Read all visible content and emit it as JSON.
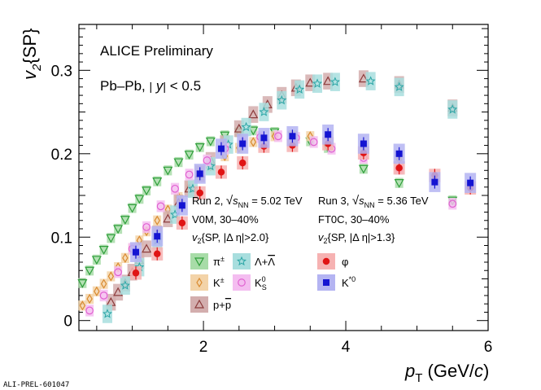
{
  "figure_id": "ALI-PREL-601047",
  "chart_data": {
    "type": "scatter",
    "xlabel": {
      "main": "p",
      "sub": "T",
      "unit": " (GeV/c)"
    },
    "ylabel": {
      "main": "v",
      "sub": "2",
      "suffix": "{SP}"
    },
    "xlim": [
      0.25,
      6.0
    ],
    "ylim": [
      -0.012,
      0.355
    ],
    "x_ticks": [
      2,
      4,
      6
    ],
    "y_ticks": [
      0,
      0.1,
      0.2,
      0.3
    ],
    "y_tick_labels": [
      "0",
      "0.1",
      "0.2",
      "0.3"
    ],
    "x_tick_labels": [
      "2",
      "4",
      "6"
    ],
    "annotations": {
      "collaboration": "ALICE Preliminary",
      "system": "Pb–Pb, |y| < 0.5",
      "run2": {
        "title": "Run 2, √s_NN = 5.02 TeV",
        "centrality": "V0M, 30–40%",
        "method": "v2{SP, |Δη|>2.0}"
      },
      "run3": {
        "title": "Run 3, √s_NN = 5.36 TeV",
        "centrality": "FT0C, 30–40%",
        "method": "v2{SP, |Δη|>1.3}"
      }
    },
    "legend_labels": {
      "pion": "π±",
      "lambda": "Λ+Λ̄",
      "kaon": "K±",
      "k0s": "K0S",
      "proton": "p+p̄",
      "phi": "φ",
      "kstar": "K*0"
    },
    "series": [
      {
        "key": "pion",
        "label": "π±",
        "marker": "triangle-down",
        "color": "#2e9e3a",
        "box": "#a8dca8",
        "points": [
          [
            0.3,
            0.045
          ],
          [
            0.4,
            0.06
          ],
          [
            0.5,
            0.073
          ],
          [
            0.6,
            0.085
          ],
          [
            0.7,
            0.099
          ],
          [
            0.8,
            0.11
          ],
          [
            0.9,
            0.121
          ],
          [
            1.0,
            0.135
          ],
          [
            1.1,
            0.146
          ],
          [
            1.2,
            0.156
          ],
          [
            1.35,
            0.167
          ],
          [
            1.5,
            0.18
          ],
          [
            1.65,
            0.19
          ],
          [
            1.8,
            0.199
          ],
          [
            1.95,
            0.208
          ],
          [
            2.1,
            0.215
          ],
          [
            2.3,
            0.222
          ],
          [
            2.5,
            0.226
          ],
          [
            2.7,
            0.228
          ],
          [
            3.0,
            0.226
          ],
          [
            3.25,
            0.222
          ],
          [
            3.5,
            0.215
          ],
          [
            3.75,
            0.207
          ],
          [
            4.25,
            0.182
          ],
          [
            4.75,
            0.165
          ],
          [
            5.5,
            0.144
          ]
        ]
      },
      {
        "key": "kaon",
        "label": "K±",
        "marker": "diamond",
        "color": "#d98a30",
        "box": "#f3d3a8",
        "points": [
          [
            0.3,
            0.018
          ],
          [
            0.4,
            0.026
          ],
          [
            0.5,
            0.035
          ],
          [
            0.6,
            0.044
          ],
          [
            0.7,
            0.053
          ],
          [
            0.8,
            0.064
          ],
          [
            0.9,
            0.075
          ],
          [
            1.0,
            0.086
          ],
          [
            1.1,
            0.096
          ],
          [
            1.2,
            0.107
          ],
          [
            1.35,
            0.12
          ],
          [
            1.5,
            0.133
          ],
          [
            1.65,
            0.148
          ],
          [
            1.8,
            0.161
          ],
          [
            1.95,
            0.174
          ],
          [
            2.1,
            0.185
          ],
          [
            2.3,
            0.197
          ],
          [
            2.5,
            0.207
          ],
          [
            2.7,
            0.214
          ],
          [
            3.0,
            0.221
          ],
          [
            3.25,
            0.222
          ],
          [
            3.5,
            0.221
          ],
          [
            3.75,
            0.218
          ],
          [
            4.25,
            0.207
          ],
          [
            4.75,
            0.193
          ]
        ]
      },
      {
        "key": "proton",
        "label": "p+p̄",
        "marker": "triangle-up",
        "color": "#8c3c3c",
        "box": "#d3aeae",
        "points": [
          [
            0.7,
            0.022
          ],
          [
            0.8,
            0.034
          ],
          [
            0.9,
            0.045
          ],
          [
            1.0,
            0.058
          ],
          [
            1.1,
            0.072
          ],
          [
            1.2,
            0.086
          ],
          [
            1.35,
            0.104
          ],
          [
            1.5,
            0.122
          ],
          [
            1.65,
            0.141
          ],
          [
            1.8,
            0.158
          ],
          [
            1.95,
            0.176
          ],
          [
            2.1,
            0.192
          ],
          [
            2.3,
            0.212
          ],
          [
            2.5,
            0.23
          ],
          [
            2.7,
            0.247
          ],
          [
            2.9,
            0.259
          ],
          [
            3.1,
            0.27
          ],
          [
            3.3,
            0.279
          ],
          [
            3.5,
            0.285
          ],
          [
            3.75,
            0.287
          ],
          [
            4.25,
            0.29
          ],
          [
            4.75,
            0.283
          ],
          [
            5.5,
            0.255
          ]
        ]
      },
      {
        "key": "lambda",
        "label": "Λ+Λ̄",
        "marker": "star",
        "color": "#2aa5a5",
        "box": "#a8dede",
        "points": [
          [
            0.65,
            0.008
          ],
          [
            0.9,
            0.042
          ],
          [
            1.1,
            0.064
          ],
          [
            1.35,
            0.096
          ],
          [
            1.6,
            0.127
          ],
          [
            1.85,
            0.158
          ],
          [
            2.1,
            0.185
          ],
          [
            2.35,
            0.211
          ],
          [
            2.6,
            0.232
          ],
          [
            2.85,
            0.25
          ],
          [
            3.1,
            0.264
          ],
          [
            3.35,
            0.277
          ],
          [
            3.6,
            0.284
          ],
          [
            3.85,
            0.286
          ],
          [
            4.35,
            0.287
          ],
          [
            4.75,
            0.28
          ],
          [
            5.5,
            0.253
          ]
        ]
      },
      {
        "key": "k0s",
        "label": "K0S",
        "marker": "circle-open",
        "color": "#e060d0",
        "box": "#f4bdf0",
        "points": [
          [
            0.4,
            0.012
          ],
          [
            0.6,
            0.03
          ],
          [
            0.8,
            0.058
          ],
          [
            1.0,
            0.086
          ],
          [
            1.2,
            0.112
          ],
          [
            1.4,
            0.137
          ],
          [
            1.6,
            0.158
          ],
          [
            1.8,
            0.175
          ],
          [
            2.05,
            0.192
          ],
          [
            2.3,
            0.206
          ],
          [
            2.55,
            0.214
          ],
          [
            2.8,
            0.22
          ],
          [
            3.05,
            0.221
          ],
          [
            3.3,
            0.219
          ],
          [
            3.55,
            0.214
          ],
          [
            3.8,
            0.206
          ],
          [
            4.25,
            0.195
          ],
          [
            4.75,
            0.182
          ],
          [
            5.5,
            0.14
          ]
        ]
      },
      {
        "key": "phi",
        "label": "φ",
        "marker": "circle",
        "color": "#e01414",
        "box": "#f6b2b2",
        "points": [
          [
            1.05,
            0.057
          ],
          [
            1.35,
            0.08
          ],
          [
            1.7,
            0.117
          ],
          [
            1.95,
            0.153
          ],
          [
            2.25,
            0.178
          ],
          [
            2.55,
            0.189
          ],
          [
            2.85,
            0.209
          ],
          [
            3.25,
            0.21
          ],
          [
            3.75,
            0.212
          ],
          [
            4.25,
            0.201
          ],
          [
            4.75,
            0.183
          ],
          [
            5.25,
            0.174
          ],
          [
            5.75,
            0.159
          ]
        ]
      },
      {
        "key": "kstar",
        "label": "K*0",
        "marker": "square",
        "color": "#1414d2",
        "box": "#b4b4f2",
        "points": [
          [
            1.05,
            0.082
          ],
          [
            1.35,
            0.101
          ],
          [
            1.7,
            0.138
          ],
          [
            1.95,
            0.176
          ],
          [
            2.25,
            0.206
          ],
          [
            2.55,
            0.212
          ],
          [
            2.85,
            0.219
          ],
          [
            3.25,
            0.221
          ],
          [
            3.75,
            0.223
          ],
          [
            4.25,
            0.212
          ],
          [
            4.75,
            0.2
          ],
          [
            5.25,
            0.166
          ],
          [
            5.75,
            0.165
          ]
        ]
      }
    ]
  }
}
